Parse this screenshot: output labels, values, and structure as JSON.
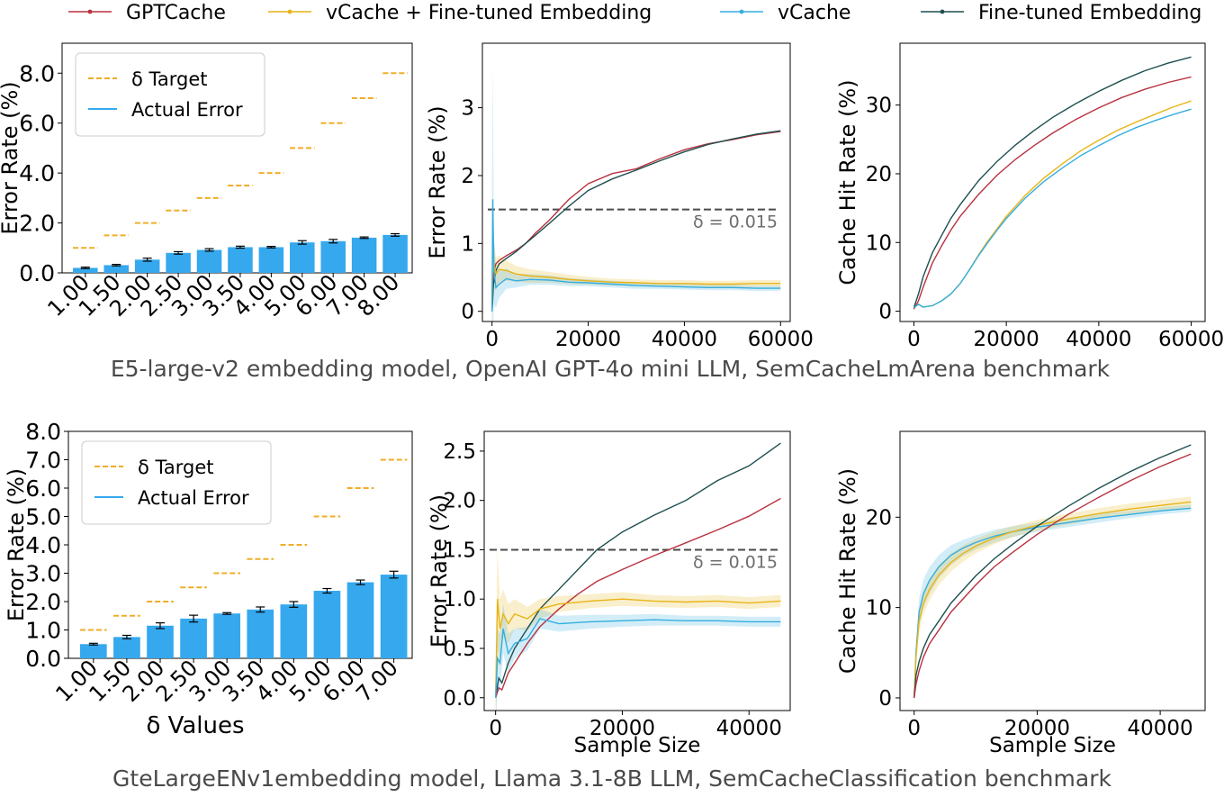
{
  "legend": {
    "entries": [
      {
        "name": "GPTCache",
        "color": "#b8323f"
      },
      {
        "name": "vCache + Fine-tuned Embedding",
        "color": "#e8b417"
      },
      {
        "name": "vCache",
        "color": "#35aee0"
      },
      {
        "name": "Fine-tuned Embedding",
        "color": "#1f4f4f"
      }
    ]
  },
  "captions": {
    "top": "E5-large-v2 embedding model, OpenAI GPT-4o mini LLM, SemCacheLmArena benchmark",
    "bottom": "GteLargeENv1embedding model, Llama 3.1-8B LLM, SemCacheClassification benchmark"
  },
  "chart_data": [
    {
      "id": "r1-bar",
      "type": "bar",
      "ylabel": "Error Rate (%)",
      "xlabel": "",
      "ylim": [
        0,
        9.2
      ],
      "yticks": [
        "0.0",
        "2.0",
        "4.0",
        "6.0",
        "8.0"
      ],
      "ytick_values": [
        0,
        2,
        4,
        6,
        8
      ],
      "categories": [
        "1.00",
        "1.50",
        "2.00",
        "2.50",
        "3.00",
        "3.50",
        "4.00",
        "5.00",
        "6.00",
        "7.00",
        "8.00"
      ],
      "target_values": [
        1.0,
        1.5,
        2.0,
        2.5,
        3.0,
        3.5,
        4.0,
        5.0,
        6.0,
        7.0,
        8.0
      ],
      "actual_values": [
        0.2,
        0.31,
        0.53,
        0.8,
        0.92,
        1.03,
        1.03,
        1.22,
        1.27,
        1.41,
        1.52
      ],
      "errors": [
        0.03,
        0.03,
        0.06,
        0.05,
        0.05,
        0.04,
        0.03,
        0.07,
        0.07,
        0.03,
        0.05
      ],
      "legend": [
        "δ Target",
        "Actual Error"
      ],
      "bar_color": "#35a8ee",
      "target_color": "#f0ad28"
    },
    {
      "id": "r1-err",
      "type": "line",
      "ylabel": "Error Rate (%)",
      "xlabel": "",
      "xlim": [
        -2000,
        62000
      ],
      "ylim": [
        -0.15,
        3.95
      ],
      "xticks": [
        "0",
        "20000",
        "40000",
        "60000"
      ],
      "xtick_values": [
        0,
        20000,
        40000,
        60000
      ],
      "yticks": [
        "0",
        "1",
        "2",
        "3"
      ],
      "ytick_values": [
        0,
        1,
        2,
        3
      ],
      "threshold": {
        "value": 1.5,
        "label": "δ = 0.015"
      },
      "series": [
        {
          "name": "GPTCache",
          "x": [
            0,
            300,
            800,
            1500,
            3000,
            5000,
            7000,
            9000,
            12000,
            16000,
            20000,
            25000,
            30000,
            35000,
            40000,
            45000,
            50000,
            55000,
            60000
          ],
          "y": [
            0.0,
            0.55,
            0.7,
            0.75,
            0.82,
            0.9,
            1.0,
            1.15,
            1.35,
            1.65,
            1.88,
            2.03,
            2.1,
            2.25,
            2.38,
            2.47,
            2.53,
            2.6,
            2.65
          ]
        },
        {
          "name": "Fine-tuned Embedding",
          "x": [
            0,
            300,
            800,
            1500,
            3000,
            5000,
            7000,
            9000,
            12000,
            16000,
            20000,
            25000,
            30000,
            35000,
            40000,
            45000,
            50000,
            55000,
            60000
          ],
          "y": [
            0.0,
            0.4,
            0.6,
            0.7,
            0.78,
            0.88,
            1.0,
            1.12,
            1.3,
            1.55,
            1.78,
            1.95,
            2.08,
            2.22,
            2.35,
            2.46,
            2.54,
            2.61,
            2.66
          ]
        },
        {
          "name": "vCache + Fine-tuned Embedding",
          "x": [
            0,
            150,
            400,
            800,
            1500,
            3000,
            5000,
            8000,
            12000,
            16000,
            20000,
            25000,
            30000,
            35000,
            40000,
            45000,
            50000,
            55000,
            60000
          ],
          "y": [
            0.0,
            1.1,
            0.7,
            0.55,
            0.62,
            0.6,
            0.55,
            0.52,
            0.5,
            0.47,
            0.45,
            0.43,
            0.42,
            0.41,
            0.41,
            0.4,
            0.4,
            0.41,
            0.41
          ],
          "band": [
            0.6,
            0.6,
            0.35,
            0.25,
            0.2,
            0.15,
            0.12,
            0.1,
            0.08,
            0.07,
            0.06,
            0.05,
            0.05,
            0.05,
            0.05,
            0.05,
            0.05,
            0.05,
            0.05
          ]
        },
        {
          "name": "vCache",
          "x": [
            0,
            150,
            400,
            800,
            1500,
            3000,
            5000,
            8000,
            12000,
            16000,
            20000,
            25000,
            30000,
            35000,
            40000,
            45000,
            50000,
            55000,
            60000
          ],
          "y": [
            0.0,
            1.65,
            0.6,
            0.35,
            0.4,
            0.48,
            0.45,
            0.47,
            0.46,
            0.43,
            0.42,
            0.4,
            0.38,
            0.37,
            0.36,
            0.35,
            0.35,
            0.34,
            0.34
          ],
          "band": [
            2.0,
            2.0,
            0.5,
            0.3,
            0.2,
            0.15,
            0.1,
            0.08,
            0.07,
            0.06,
            0.05,
            0.05,
            0.05,
            0.04,
            0.04,
            0.04,
            0.04,
            0.04,
            0.04
          ]
        }
      ]
    },
    {
      "id": "r1-hit",
      "type": "line",
      "ylabel": "Cache Hit Rate (%)",
      "xlabel": "",
      "xlim": [
        -3000,
        63000
      ],
      "ylim": [
        -1.5,
        39
      ],
      "xticks": [
        "0",
        "20000",
        "40000",
        "60000"
      ],
      "xtick_values": [
        0,
        20000,
        40000,
        60000
      ],
      "yticks": [
        "0",
        "10",
        "20",
        "30"
      ],
      "ytick_values": [
        0,
        10,
        20,
        30
      ],
      "series": [
        {
          "name": "Fine-tuned Embedding",
          "x": [
            0,
            1000,
            2000,
            4000,
            6000,
            8000,
            10000,
            14000,
            18000,
            22000,
            26000,
            30000,
            35000,
            40000,
            45000,
            50000,
            55000,
            60000
          ],
          "y": [
            0.5,
            2.5,
            5.0,
            8.5,
            11.0,
            13.5,
            15.5,
            19.0,
            21.8,
            24.2,
            26.3,
            28.2,
            30.2,
            32.0,
            33.6,
            35.0,
            36.1,
            37.0
          ]
        },
        {
          "name": "GPTCache",
          "x": [
            0,
            1000,
            2000,
            4000,
            6000,
            8000,
            10000,
            14000,
            18000,
            22000,
            26000,
            30000,
            35000,
            40000,
            45000,
            50000,
            55000,
            60000
          ],
          "y": [
            0.3,
            1.5,
            3.5,
            7.0,
            9.5,
            11.8,
            13.8,
            17.0,
            19.8,
            22.1,
            24.1,
            25.9,
            27.9,
            29.6,
            31.1,
            32.3,
            33.3,
            34.1
          ]
        },
        {
          "name": "vCache + Fine-tuned Embedding",
          "x": [
            0,
            1000,
            2000,
            3000,
            4000,
            6000,
            8000,
            10000,
            12000,
            14000,
            16000,
            18000,
            20000,
            24000,
            28000,
            32000,
            36000,
            40000,
            44000,
            48000,
            52000,
            56000,
            60000
          ],
          "y": [
            0.5,
            1.0,
            0.6,
            0.7,
            0.8,
            1.5,
            2.5,
            4.0,
            6.0,
            8.2,
            10.2,
            12.0,
            13.8,
            16.8,
            19.3,
            21.4,
            23.3,
            24.9,
            26.3,
            27.5,
            28.6,
            29.7,
            30.6
          ]
        },
        {
          "name": "vCache",
          "x": [
            0,
            1000,
            2000,
            3000,
            4000,
            6000,
            8000,
            10000,
            12000,
            14000,
            16000,
            18000,
            20000,
            24000,
            28000,
            32000,
            36000,
            40000,
            44000,
            48000,
            52000,
            56000,
            60000
          ],
          "y": [
            0.5,
            1.0,
            0.6,
            0.7,
            0.8,
            1.5,
            2.5,
            4.0,
            6.0,
            8.1,
            10.0,
            11.8,
            13.5,
            16.4,
            18.8,
            20.8,
            22.6,
            24.1,
            25.5,
            26.7,
            27.7,
            28.6,
            29.4
          ]
        }
      ]
    },
    {
      "id": "r2-bar",
      "type": "bar",
      "ylabel": "Error Rate (%)",
      "xlabel": "δ Values",
      "ylim": [
        0,
        8
      ],
      "yticks": [
        "0.0",
        "1.0",
        "2.0",
        "3.0",
        "4.0",
        "5.0",
        "6.0",
        "7.0",
        "8.0"
      ],
      "ytick_values": [
        0,
        1,
        2,
        3,
        4,
        5,
        6,
        7,
        8
      ],
      "categories": [
        "1.00",
        "1.50",
        "2.00",
        "2.50",
        "3.00",
        "3.50",
        "4.00",
        "5.00",
        "6.00",
        "7.00"
      ],
      "target_values": [
        1.0,
        1.5,
        2.0,
        2.5,
        3.0,
        3.5,
        4.0,
        5.0,
        6.0,
        7.0
      ],
      "actual_values": [
        0.5,
        0.75,
        1.15,
        1.4,
        1.58,
        1.72,
        1.9,
        2.38,
        2.68,
        2.95
      ],
      "errors": [
        0.03,
        0.06,
        0.1,
        0.12,
        0.03,
        0.09,
        0.1,
        0.08,
        0.08,
        0.12
      ],
      "legend": [
        "δ Target",
        "Actual Error"
      ],
      "bar_color": "#35a8ee",
      "target_color": "#f0ad28"
    },
    {
      "id": "r2-err",
      "type": "line",
      "ylabel": "Error Rate (%)",
      "xlabel": "Sample Size",
      "xlim": [
        -1800,
        46500
      ],
      "ylim": [
        -0.13,
        2.7
      ],
      "xticks": [
        "0",
        "20000",
        "40000"
      ],
      "xtick_values": [
        0,
        20000,
        40000
      ],
      "yticks": [
        "0.0",
        "0.5",
        "1.0",
        "1.5",
        "2.0",
        "2.5"
      ],
      "ytick_values": [
        0,
        0.5,
        1,
        1.5,
        2,
        2.5
      ],
      "threshold": {
        "value": 1.5,
        "label": "δ = 0.015"
      },
      "series": [
        {
          "name": "Fine-tuned Embedding",
          "x": [
            0,
            500,
            1000,
            2000,
            3000,
            5000,
            7000,
            10000,
            13000,
            16000,
            20000,
            25000,
            30000,
            35000,
            40000,
            45000
          ],
          "y": [
            0.0,
            0.2,
            0.15,
            0.35,
            0.5,
            0.7,
            0.9,
            1.1,
            1.3,
            1.5,
            1.68,
            1.85,
            2.0,
            2.2,
            2.35,
            2.58
          ]
        },
        {
          "name": "GPTCache",
          "x": [
            0,
            500,
            1000,
            2000,
            3000,
            5000,
            7000,
            10000,
            13000,
            16000,
            20000,
            25000,
            30000,
            35000,
            40000,
            45000
          ],
          "y": [
            0.0,
            0.1,
            0.08,
            0.25,
            0.35,
            0.55,
            0.72,
            0.9,
            1.05,
            1.18,
            1.3,
            1.44,
            1.57,
            1.7,
            1.84,
            2.02
          ]
        },
        {
          "name": "vCache + Fine-tuned Embedding",
          "x": [
            0,
            300,
            700,
            1200,
            2000,
            3000,
            5000,
            7000,
            10000,
            15000,
            20000,
            25000,
            30000,
            35000,
            40000,
            45000
          ],
          "y": [
            0.0,
            1.0,
            0.7,
            0.85,
            0.75,
            0.85,
            0.8,
            0.9,
            0.95,
            0.98,
            1.0,
            0.98,
            0.97,
            0.98,
            0.96,
            0.98
          ],
          "band": [
            0.5,
            0.5,
            0.3,
            0.25,
            0.2,
            0.15,
            0.12,
            0.1,
            0.08,
            0.07,
            0.07,
            0.06,
            0.06,
            0.06,
            0.06,
            0.06
          ]
        },
        {
          "name": "vCache",
          "x": [
            0,
            300,
            700,
            1200,
            2000,
            3000,
            5000,
            7000,
            10000,
            15000,
            20000,
            25000,
            30000,
            35000,
            40000,
            45000
          ],
          "y": [
            0.0,
            0.4,
            0.35,
            0.7,
            0.45,
            0.55,
            0.6,
            0.8,
            0.75,
            0.77,
            0.78,
            0.79,
            0.78,
            0.78,
            0.77,
            0.77
          ],
          "band": [
            0.3,
            0.3,
            0.3,
            0.25,
            0.2,
            0.15,
            0.12,
            0.1,
            0.08,
            0.07,
            0.06,
            0.06,
            0.05,
            0.05,
            0.05,
            0.05
          ]
        }
      ]
    },
    {
      "id": "r2-hit",
      "type": "line",
      "ylabel": "Cache Hit Rate (%)",
      "xlabel": "Sample Size",
      "xlim": [
        -2300,
        47300
      ],
      "ylim": [
        -1.4,
        29.5
      ],
      "xticks": [
        "0",
        "20000",
        "40000"
      ],
      "xtick_values": [
        0,
        20000,
        40000
      ],
      "yticks": [
        "0",
        "10",
        "20"
      ],
      "ytick_values": [
        0,
        10,
        20
      ],
      "series": [
        {
          "name": "vCache",
          "x": [
            0,
            300,
            800,
            1500,
            2500,
            4000,
            6000,
            8000,
            10000,
            13000,
            16000,
            20000,
            25000,
            30000,
            35000,
            40000,
            45000
          ],
          "y": [
            0.0,
            5.0,
            9.5,
            11.5,
            13.0,
            14.5,
            15.8,
            16.6,
            17.2,
            17.9,
            18.4,
            18.9,
            19.4,
            19.9,
            20.3,
            20.7,
            21.0
          ],
          "band": [
            0.8,
            0.8,
            1.5,
            1.6,
            1.5,
            1.3,
            1.1,
            0.9,
            0.8,
            0.7,
            0.6,
            0.5,
            0.5,
            0.5,
            0.4,
            0.4,
            0.4
          ]
        },
        {
          "name": "vCache + Fine-tuned Embedding",
          "x": [
            0,
            300,
            800,
            1500,
            2500,
            4000,
            6000,
            8000,
            10000,
            13000,
            16000,
            20000,
            25000,
            30000,
            35000,
            40000,
            45000
          ],
          "y": [
            0.0,
            4.5,
            8.5,
            10.5,
            12.0,
            13.6,
            15.0,
            16.0,
            16.8,
            17.7,
            18.4,
            19.1,
            19.8,
            20.4,
            20.9,
            21.3,
            21.7
          ],
          "band": [
            0.8,
            0.8,
            1.2,
            1.3,
            1.2,
            1.1,
            1.0,
            0.9,
            0.8,
            0.7,
            0.6,
            0.6,
            0.6,
            0.6,
            0.6,
            0.6,
            0.6
          ]
        },
        {
          "name": "Fine-tuned Embedding",
          "x": [
            0,
            300,
            800,
            1500,
            2500,
            4000,
            6000,
            8000,
            10000,
            13000,
            16000,
            20000,
            25000,
            30000,
            35000,
            40000,
            45000
          ],
          "y": [
            0.0,
            2.5,
            4.0,
            5.5,
            7.0,
            8.5,
            10.5,
            12.0,
            13.5,
            15.4,
            17.0,
            19.0,
            21.2,
            23.2,
            25.0,
            26.6,
            28.0
          ]
        },
        {
          "name": "GPTCache",
          "x": [
            0,
            300,
            800,
            1500,
            2500,
            4000,
            6000,
            8000,
            10000,
            13000,
            16000,
            20000,
            25000,
            30000,
            35000,
            40000,
            45000
          ],
          "y": [
            0.0,
            1.5,
            3.0,
            4.5,
            6.0,
            7.5,
            9.5,
            11.0,
            12.5,
            14.5,
            16.1,
            18.1,
            20.3,
            22.2,
            24.0,
            25.6,
            27.0
          ]
        }
      ]
    }
  ]
}
